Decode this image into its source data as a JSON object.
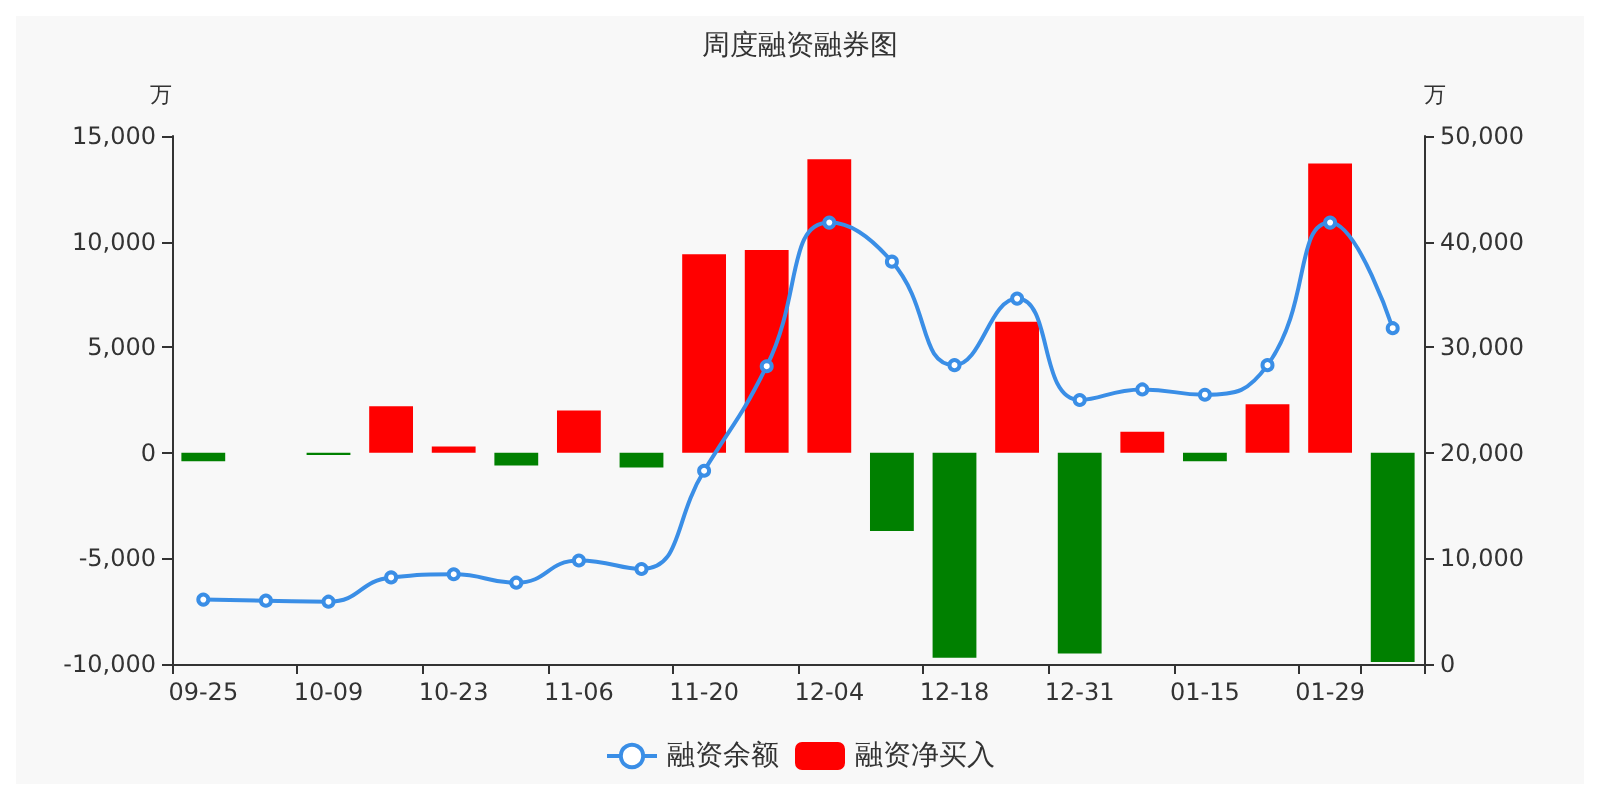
{
  "chart_data": {
    "type": "bar",
    "title": "周度融资融券图",
    "ylabel": "万",
    "y2label": "万",
    "categories": [
      "09-25",
      null,
      "10-09",
      null,
      "10-23",
      null,
      "11-06",
      null,
      "11-20",
      null,
      "12-04",
      null,
      "12-18",
      null,
      "12-31",
      null,
      "01-15",
      null,
      "01-29",
      null
    ],
    "series": [
      {
        "name": "融资余额",
        "type": "line",
        "axis": "y2",
        "color": "#3a8ee6",
        "marker": "circle",
        "values": [
          6100,
          6000,
          5900,
          8200,
          8500,
          7700,
          9800,
          9000,
          18300,
          28200,
          41800,
          38100,
          28300,
          34600,
          25000,
          26000,
          25500,
          28300,
          41800,
          31800
        ]
      },
      {
        "name": "融资净买入",
        "color": "#ff0000",
        "colors": [
          "#008000",
          "#008000",
          "#008000",
          "#ff0000",
          "#ff0000",
          "#008000",
          "#ff0000",
          "#008000",
          "#ff0000",
          "#ff0000",
          "#ff0000",
          "#008000",
          "#008000",
          "#ff0000",
          "#008000",
          "#ff0000",
          "#008000",
          "#ff0000",
          "#ff0000",
          "#008000"
        ],
        "values": [
          -400,
          0,
          -100,
          2200,
          300,
          -600,
          2000,
          -700,
          9400,
          9600,
          13900,
          -3700,
          -9700,
          6200,
          -9500,
          1000,
          -400,
          2300,
          13700,
          -9900
        ]
      }
    ],
    "ylim": [
      -10000,
      15000
    ],
    "yticks": [
      {
        "value": -10000,
        "label": "-10,000"
      },
      {
        "value": -5000,
        "label": "-5,000"
      },
      0,
      {
        "value": 5000,
        "label": "5,000"
      },
      {
        "value": 10000,
        "label": "10,000"
      },
      {
        "value": 15000,
        "label": "15,000"
      }
    ],
    "y2lim": [
      0,
      50000
    ],
    "y2ticks": [
      0,
      {
        "value": 10000,
        "label": "10,000"
      },
      {
        "value": 20000,
        "label": "20,000"
      },
      {
        "value": 30000,
        "label": "30,000"
      },
      {
        "value": 40000,
        "label": "40,000"
      },
      {
        "value": 50000,
        "label": "50,000"
      }
    ],
    "grid": false,
    "legend": "bottom"
  }
}
